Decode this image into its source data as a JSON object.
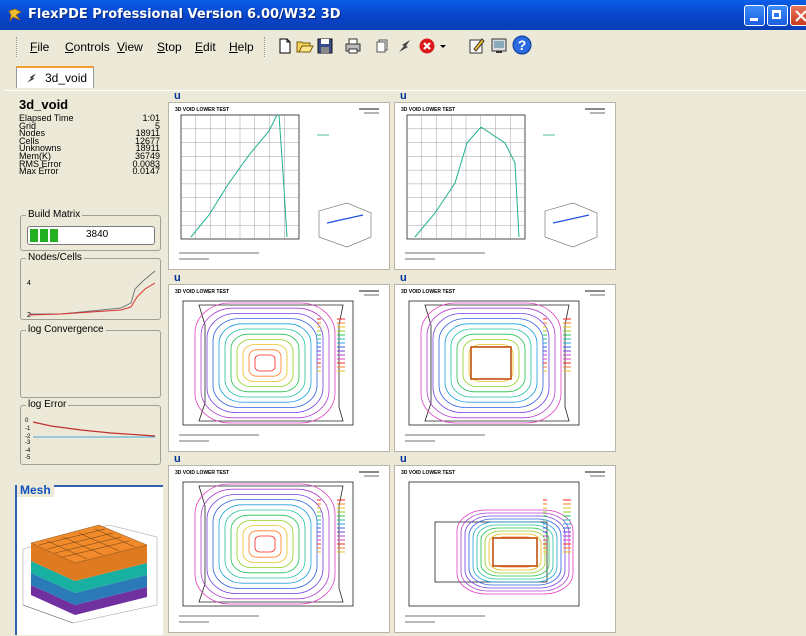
{
  "window": {
    "title": "FlexPDE Professional Version 6.00/W32 3D"
  },
  "menu": [
    "File",
    "Controls",
    "View",
    "Stop",
    "Edit",
    "Help"
  ],
  "tab": {
    "label": "3d_void"
  },
  "status": {
    "problem": "3d_void",
    "rows": [
      {
        "label": "Elapsed Time",
        "value": "1:01"
      },
      {
        "label": "Grid",
        "value": "5"
      },
      {
        "label": "Nodes",
        "value": "18911"
      },
      {
        "label": "Cells",
        "value": "12677"
      },
      {
        "label": "Unknowns",
        "value": "18911"
      },
      {
        "label": "Mem(K)",
        "value": "36749"
      },
      {
        "label": "RMS Error",
        "value": "0.0083"
      },
      {
        "label": "Max Error",
        "value": "0.0147"
      }
    ]
  },
  "build_matrix": {
    "label": "Build Matrix",
    "value": "3840",
    "progress": 0.28
  },
  "panels": {
    "nodes_cells": "Nodes/Cells",
    "convergence": "log Convergence",
    "error": "log Error",
    "mesh": "Mesh"
  },
  "plots": [
    {
      "u": "u",
      "title": "3D VOID LOWER TEST"
    },
    {
      "u": "u",
      "title": "3D VOID LOWER TEST"
    },
    {
      "u": "u",
      "title": "3D VOID LOWER TEST"
    },
    {
      "u": "u",
      "title": "3D VOID LOWER TEST"
    },
    {
      "u": "u",
      "title": "3D VOID LOWER TEST"
    },
    {
      "u": "u",
      "title": "3D VOID LOWER TEST"
    }
  ],
  "colors": {
    "titlebar": "#0842c6",
    "accent": "#003399",
    "progress": "#22b022"
  }
}
